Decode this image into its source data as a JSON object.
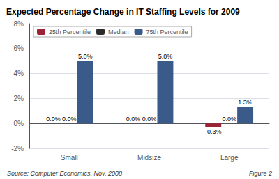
{
  "chart_data": {
    "type": "bar",
    "title": "Expected Percentage Change in IT Staffing Levels for 2009",
    "categories": [
      "Small",
      "Midsize",
      "Large"
    ],
    "series": [
      {
        "name": "25th Percentile",
        "color": "#9B2335",
        "values": [
          0.0,
          0.0,
          -0.3
        ],
        "value_labels": [
          "0.0%",
          "0.0%",
          "-0.3%"
        ]
      },
      {
        "name": "Median",
        "color": "#2B2B2B",
        "values": [
          0.0,
          0.0,
          0.0
        ],
        "value_labels": [
          "0.0%",
          "0.0%",
          "0.0%"
        ]
      },
      {
        "name": "75th Percentile",
        "color": "#3A5A8A",
        "values": [
          5.0,
          5.0,
          1.3
        ],
        "value_labels": [
          "5.0%",
          "5.0%",
          "1.3%"
        ]
      }
    ],
    "ylim": [
      -2,
      8
    ],
    "yticks": [
      {
        "value": -2,
        "label": "-2%"
      },
      {
        "value": 0,
        "label": "0%"
      },
      {
        "value": 2,
        "label": "2%"
      },
      {
        "value": 4,
        "label": "4%"
      },
      {
        "value": 6,
        "label": "6%"
      },
      {
        "value": 8,
        "label": "8%"
      }
    ],
    "annotations": [
      "Source: Computer Economics, Nov. 2008",
      "Figure 2"
    ],
    "grid": true,
    "legend": "upper left",
    "data_labels": true
  }
}
